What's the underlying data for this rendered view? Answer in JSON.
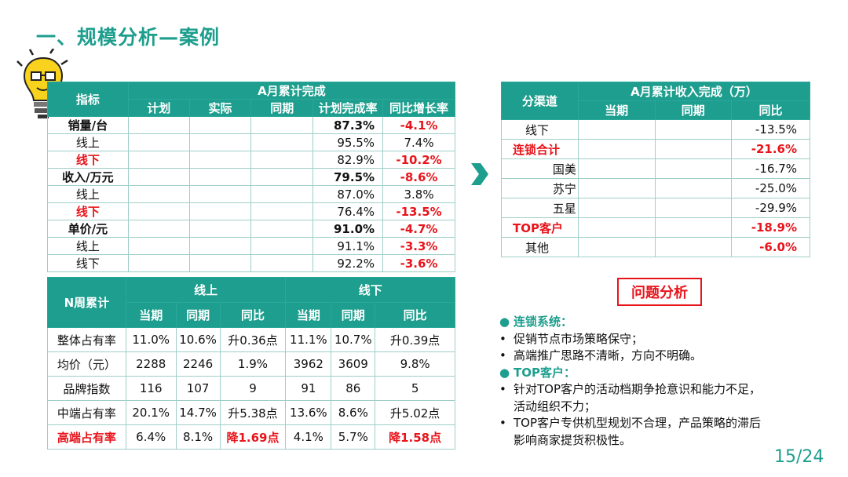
{
  "title": "一、规模分析—案例",
  "tableA": {
    "h_indicator": "指标",
    "h_group": "A月累计完成",
    "h_cols": [
      "计划",
      "实际",
      "同期",
      "计划完成率",
      "同比增长率"
    ],
    "rows": [
      {
        "label": "销量/台",
        "rate": "87.3%",
        "yoy": "-4.1%"
      },
      {
        "label": "线上",
        "rate": "95.5%",
        "yoy": "7.4%"
      },
      {
        "label": "线下",
        "rate": "82.9%",
        "yoy": "-10.2%"
      },
      {
        "label": "收入/万元",
        "rate": "79.5%",
        "yoy": "-8.6%"
      },
      {
        "label": "线上",
        "rate": "87.0%",
        "yoy": "3.8%"
      },
      {
        "label": "线下",
        "rate": "76.4%",
        "yoy": "-13.5%"
      },
      {
        "label": "单价/元",
        "rate": "91.0%",
        "yoy": "-4.7%"
      },
      {
        "label": "线上",
        "rate": "91.1%",
        "yoy": "-3.3%"
      },
      {
        "label": "线下",
        "rate": "92.2%",
        "yoy": "-3.6%"
      }
    ]
  },
  "tableB": {
    "h_channel": "分渠道",
    "h_group": "A月累计收入完成（万）",
    "h_cols": [
      "当期",
      "同期",
      "同比"
    ],
    "rows": [
      {
        "label": "线下",
        "yoy": "-13.5%"
      },
      {
        "label": "连锁合计",
        "yoy": "-21.6%"
      },
      {
        "label": "国美",
        "yoy": "-16.7%"
      },
      {
        "label": "苏宁",
        "yoy": "-25.0%"
      },
      {
        "label": "五星",
        "yoy": "-29.9%"
      },
      {
        "label": "TOP客户",
        "yoy": "-18.9%"
      },
      {
        "label": "其他",
        "yoy": "-6.0%"
      }
    ]
  },
  "tableC": {
    "h_first": "N周累计",
    "h_online": "线上",
    "h_offline": "线下",
    "h_cols": [
      "当期",
      "同期",
      "同比",
      "当期",
      "同期",
      "同比"
    ],
    "rows": [
      {
        "label": "整体占有率",
        "v": [
          "11.0%",
          "10.6%",
          "升0.36点",
          "11.1%",
          "10.7%",
          "升0.39点"
        ]
      },
      {
        "label": "均价（元）",
        "v": [
          "2288",
          "2246",
          "1.9%",
          "3962",
          "3609",
          "9.8%"
        ]
      },
      {
        "label": "品牌指数",
        "v": [
          "116",
          "107",
          "9",
          "91",
          "86",
          "5"
        ]
      },
      {
        "label": "中端占有率",
        "v": [
          "20.1%",
          "14.7%",
          "升5.38点",
          "13.6%",
          "8.6%",
          "升5.02点"
        ]
      },
      {
        "label": "高端占有率",
        "v": [
          "6.4%",
          "8.1%",
          "降1.69点",
          "4.1%",
          "5.7%",
          "降1.58点"
        ]
      }
    ]
  },
  "problem_title": "问题分析",
  "notes": [
    {
      "marker": "●",
      "text": "连锁系统：",
      "type": "heading"
    },
    {
      "marker": "•",
      "text": "促销节点市场策略保守；",
      "type": "item"
    },
    {
      "marker": "•",
      "text": "高端推广思路不清晰，方向不明确。",
      "type": "item"
    },
    {
      "marker": "●",
      "text": "TOP客户：",
      "type": "heading"
    },
    {
      "marker": "•",
      "text": "针对TOP客户的活动档期争抢意识和能力不足，",
      "type": "item"
    },
    {
      "marker": "",
      "text": "活动组织不力；",
      "type": "item"
    },
    {
      "marker": "•",
      "text": "TOP客户专供机型规划不合理，产品策略的滞后",
      "type": "item"
    },
    {
      "marker": "",
      "text": "影响商家提货积极性。",
      "type": "item"
    }
  ],
  "page_number": "15/24",
  "colors": {
    "accent": "#1e9e8e",
    "alert": "#e8141b"
  }
}
